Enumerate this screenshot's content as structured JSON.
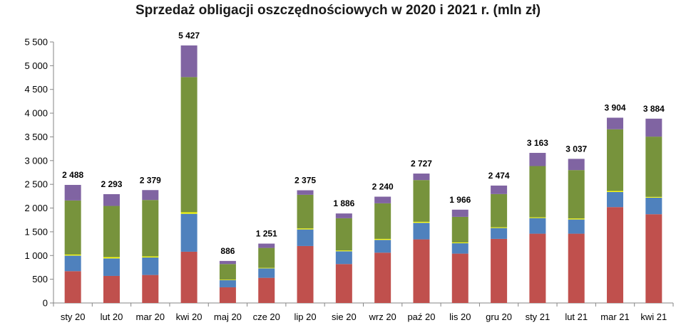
{
  "chart_data": {
    "type": "bar",
    "stacked": true,
    "title": "Sprzedaż obligacji oszczędnościowych w 2020 i 2021 r. (mln zł)",
    "xlabel": "",
    "ylabel": "",
    "ylim": [
      0,
      5500
    ],
    "yticks": [
      0,
      500,
      1000,
      1500,
      2000,
      2500,
      3000,
      3500,
      4000,
      4500,
      5000,
      5500
    ],
    "ytick_labels": [
      "0",
      "500",
      "1 000",
      "1 500",
      "2 000",
      "2 500",
      "3 000",
      "3 500",
      "4 000",
      "4 500",
      "5 000",
      "5 500"
    ],
    "grid": false,
    "legend": "none",
    "categories": [
      "sty 20",
      "lut 20",
      "mar 20",
      "kwi 20",
      "maj 20",
      "cze 20",
      "lip 20",
      "sie 20",
      "wrz 20",
      "paź 20",
      "lis 20",
      "gru 20",
      "sty 21",
      "lut 21",
      "mar 21",
      "kwi 21"
    ],
    "series": [
      {
        "color": "#C0504D",
        "values": [
          670,
          570,
          590,
          1080,
          330,
          530,
          1200,
          820,
          1060,
          1340,
          1040,
          1350,
          1460,
          1460,
          2020,
          1870
        ]
      },
      {
        "color": "#4F81BD",
        "values": [
          330,
          370,
          370,
          800,
          150,
          200,
          350,
          270,
          270,
          350,
          220,
          230,
          330,
          300,
          320,
          350
        ]
      },
      {
        "color": "#FFFF00",
        "values": [
          20,
          25,
          20,
          30,
          10,
          10,
          20,
          15,
          20,
          20,
          15,
          15,
          15,
          20,
          20,
          15
        ]
      },
      {
        "color": "#77933C",
        "values": [
          1140,
          1080,
          1190,
          2850,
          330,
          420,
          710,
          680,
          750,
          880,
          540,
          700,
          1080,
          1020,
          1300,
          1270
        ]
      },
      {
        "color": "#8064A2",
        "values": [
          328,
          248,
          209,
          667,
          66,
          91,
          95,
          101,
          140,
          137,
          151,
          179,
          278,
          237,
          244,
          379
        ]
      }
    ],
    "total_labels": [
      "2 488",
      "2 293",
      "2 379",
      "5 427",
      "886",
      "1 251",
      "2 375",
      "1 886",
      "2 240",
      "2 727",
      "1 966",
      "2 474",
      "3 163",
      "3 037",
      "3 904",
      "3 884"
    ]
  }
}
